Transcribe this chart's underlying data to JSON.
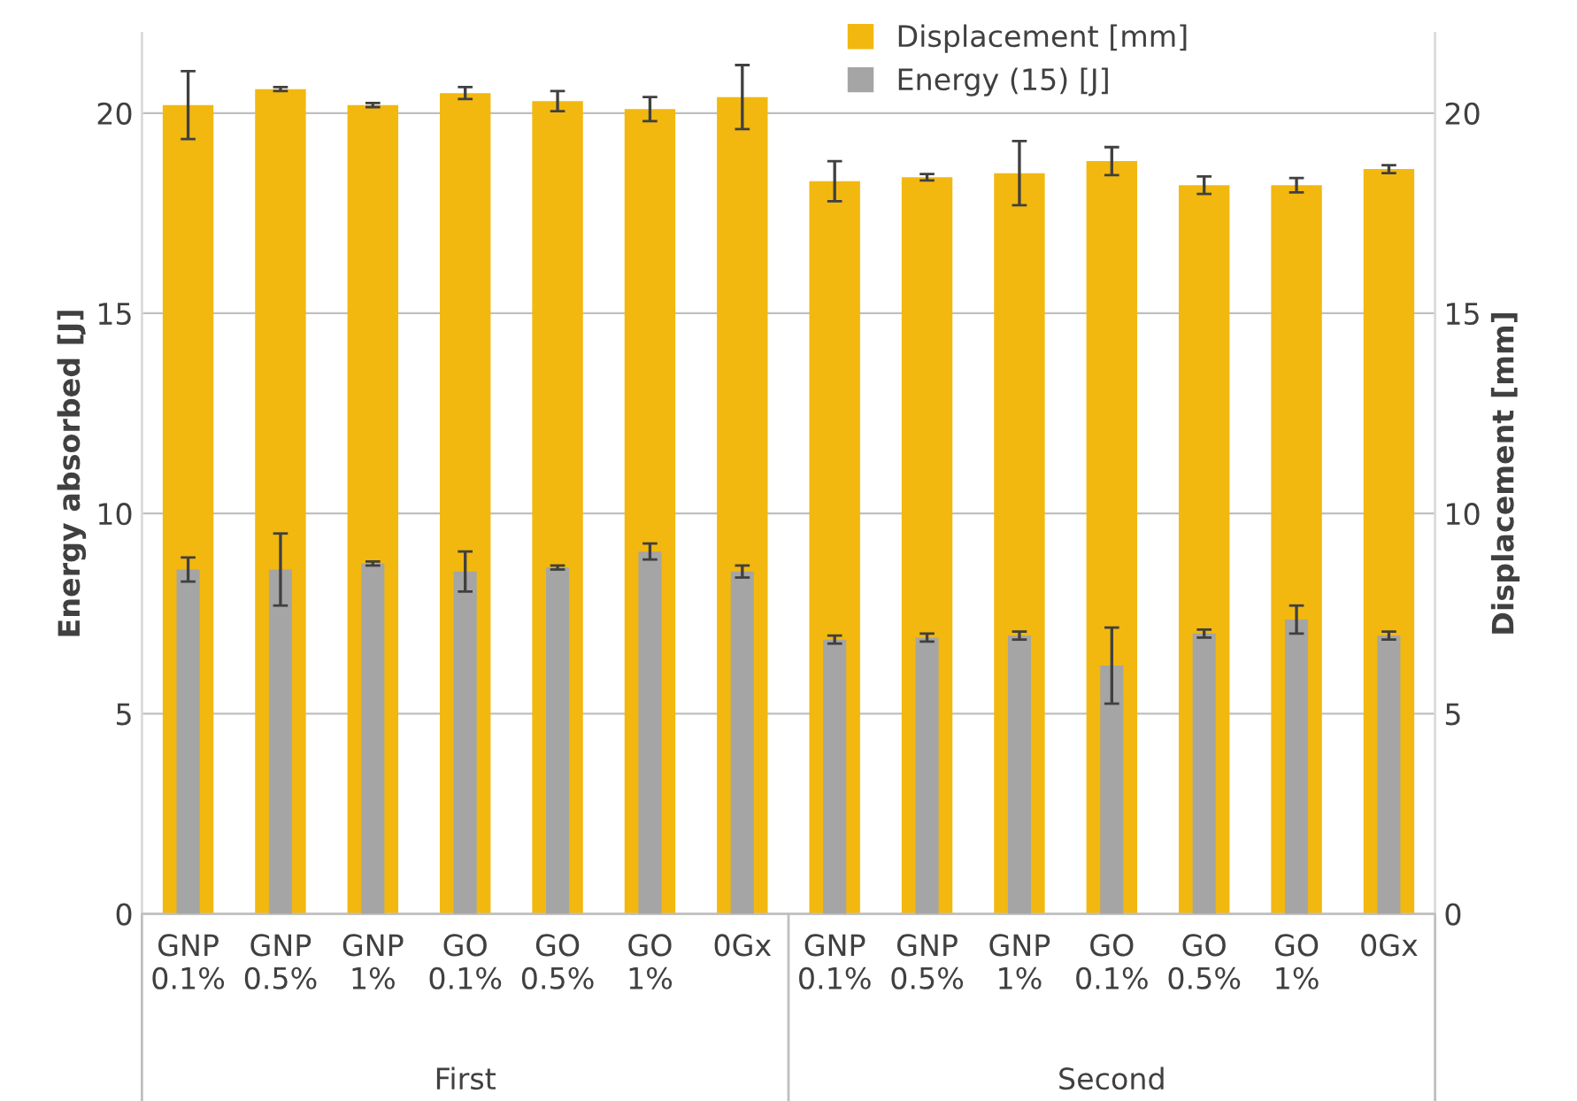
{
  "chart_data": {
    "type": "bar",
    "categories": [
      "GNP\n0.1%",
      "GNP\n0.5%",
      "GNP\n1%",
      "GO\n0.1%",
      "GO\n0.5%",
      "GO\n1%",
      "0Gx",
      "GNP\n0.1%",
      "GNP\n0.5%",
      "GNP\n1%",
      "GO\n0.1%",
      "GO\n0.5%",
      "GO\n1%",
      "0Gx"
    ],
    "series": [
      {
        "name": "Displacement [mm]",
        "color": "#f2b80f",
        "axis": "y2",
        "values": [
          20.2,
          20.6,
          20.2,
          20.5,
          20.3,
          20.1,
          20.4,
          18.3,
          18.4,
          18.5,
          18.8,
          18.2,
          18.2,
          18.6
        ],
        "errors": [
          0.85,
          0.05,
          0.05,
          0.15,
          0.25,
          0.3,
          0.8,
          0.5,
          0.08,
          0.8,
          0.35,
          0.22,
          0.18,
          0.1
        ]
      },
      {
        "name": "Energy (15) [J]",
        "color": "#a5a5a5",
        "axis": "y",
        "values": [
          8.6,
          8.6,
          8.75,
          8.55,
          8.65,
          9.05,
          8.55,
          6.85,
          6.9,
          6.95,
          6.2,
          7.0,
          7.35,
          6.95
        ],
        "errors": [
          0.3,
          0.9,
          0.05,
          0.5,
          0.05,
          0.2,
          0.15,
          0.1,
          0.1,
          0.1,
          0.95,
          0.1,
          0.35,
          0.1
        ]
      }
    ],
    "ylabel": "Energy absorbed [J]",
    "y2label": "Displacement [mm]",
    "ylim": [
      0,
      22
    ],
    "yticks": [
      0,
      5,
      10,
      15,
      20
    ],
    "y2lim": [
      0,
      22
    ],
    "y2ticks": [
      0,
      5,
      10,
      15,
      20
    ],
    "annotations": [
      "First",
      "Second"
    ],
    "grid": "y",
    "legend": "top right"
  }
}
